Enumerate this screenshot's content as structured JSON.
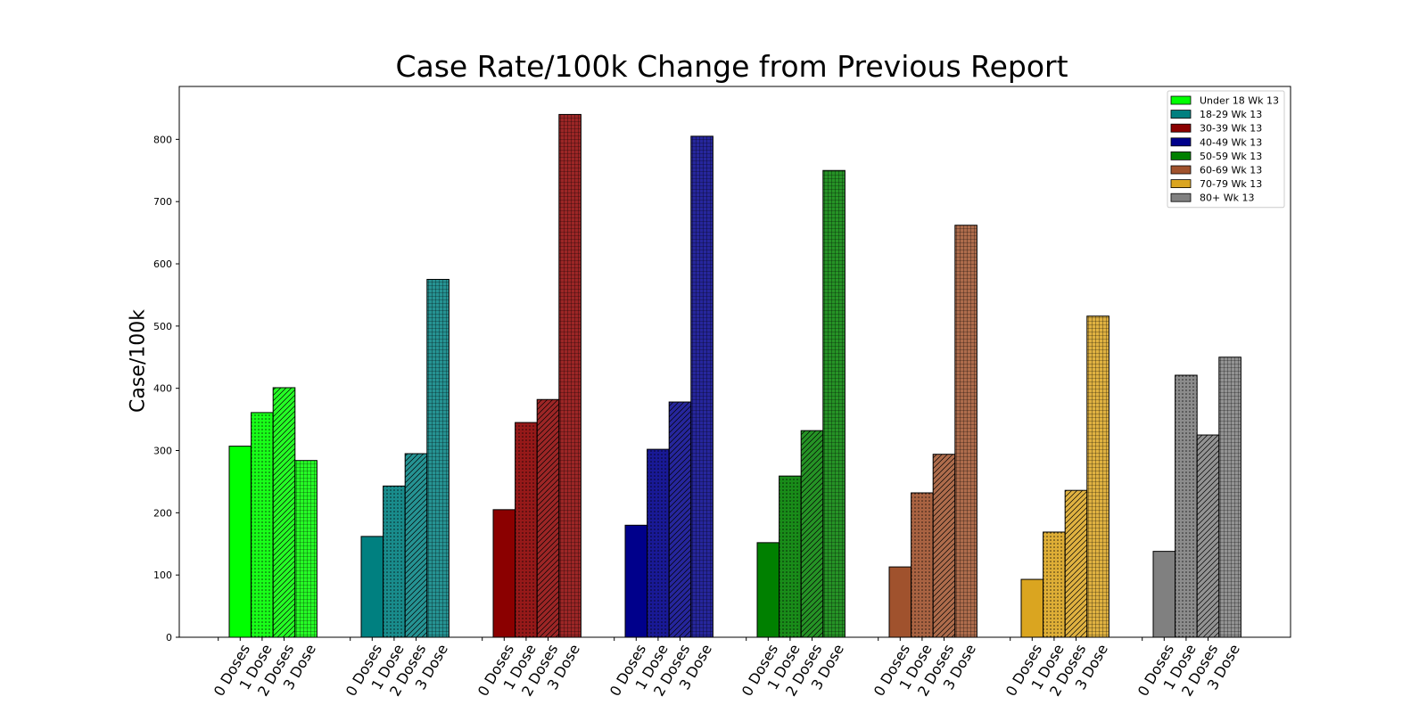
{
  "chart_data": {
    "type": "bar",
    "title": "Case Rate/100k Change from Previous Report",
    "xlabel": "",
    "ylabel": "Case/100k",
    "ylim": [
      0,
      885
    ],
    "yticks": [
      0,
      100,
      200,
      300,
      400,
      500,
      600,
      700,
      800
    ],
    "dose_labels": [
      "0 Doses",
      "1 Dose",
      "2 Doses",
      "3 Dose"
    ],
    "legend_position": "top-right",
    "grid": false,
    "series": [
      {
        "name": "Under 18 Wk 13",
        "color": "#00ff00",
        "values": [
          307,
          361,
          401,
          284
        ]
      },
      {
        "name": "18-29 Wk 13",
        "color": "#008080",
        "values": [
          162,
          243,
          295,
          575
        ]
      },
      {
        "name": "30-39 Wk 13",
        "color": "#8b0000",
        "values": [
          205,
          345,
          382,
          840
        ]
      },
      {
        "name": "40-49 Wk 13",
        "color": "#00008b",
        "values": [
          180,
          302,
          378,
          805
        ]
      },
      {
        "name": "50-59 Wk 13",
        "color": "#008000",
        "values": [
          152,
          259,
          332,
          750
        ]
      },
      {
        "name": "60-69 Wk 13",
        "color": "#a0522d",
        "values": [
          113,
          232,
          294,
          662
        ]
      },
      {
        "name": "70-79 Wk 13",
        "color": "#daa520",
        "values": [
          93,
          169,
          236,
          516
        ]
      },
      {
        "name": "80+ Wk 13",
        "color": "#808080",
        "values": [
          138,
          421,
          325,
          450
        ]
      }
    ]
  }
}
